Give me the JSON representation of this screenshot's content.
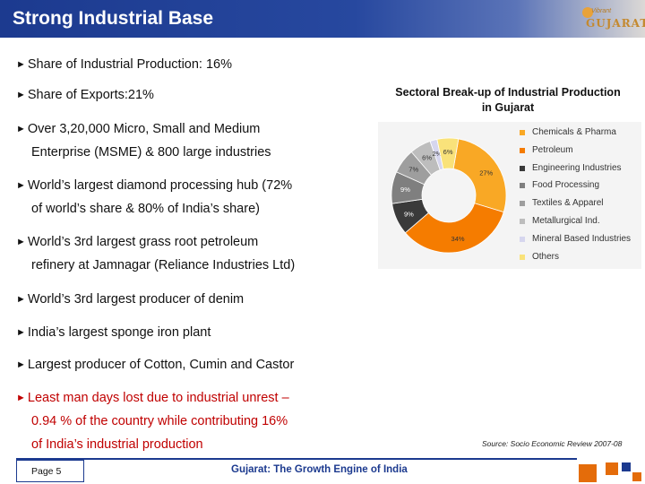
{
  "slide": {
    "title": "Strong Industrial Base",
    "logo_small": "Vibrant",
    "logo_main": "GUJARAT"
  },
  "bullets": [
    {
      "lines": [
        "Share of Industrial Production: 16%"
      ]
    },
    {
      "lines": [
        "Share of Exports:21%"
      ]
    },
    {
      "lines": [
        "Over 3,20,000 Micro, Small and Medium",
        "Enterprise (MSME) & 800 large industries"
      ]
    },
    {
      "lines": [
        "World’s largest diamond processing hub (72%",
        "of world’s share & 80% of India’s share)"
      ]
    },
    {
      "lines": [
        "World’s 3rd largest grass root petroleum",
        "refinery at Jamnagar  (Reliance Industries Ltd)"
      ]
    },
    {
      "lines": [
        "World’s 3rd largest producer of denim"
      ]
    },
    {
      "lines": [
        "India’s largest sponge iron plant"
      ]
    },
    {
      "lines": [
        "Largest producer of Cotton, Cumin and Castor"
      ]
    },
    {
      "lines": [
        "Least man days lost due to industrial unrest –",
        "0.94 % of the country while contributing 16%",
        "of India’s industrial production"
      ],
      "highlight": true
    }
  ],
  "bullet_marker": "►",
  "chart_data": {
    "type": "pie",
    "title": "Sectoral Break-up of Industrial Production in Gujarat",
    "title_lines": [
      "Sectoral Break-up of Industrial Production",
      "in Gujarat"
    ],
    "donut": true,
    "legend_position": "right",
    "categories": [
      "Chemicals & Pharma",
      "Petroleum",
      "Engineering Industries",
      "Food Processing",
      "Textiles & Apparel",
      "Metallurgical Ind.",
      "Mineral Based Industries",
      "Others"
    ],
    "values": [
      27,
      34,
      9,
      9,
      7,
      6,
      2,
      6
    ],
    "data_labels": [
      "27%",
      "34%",
      "9%",
      "9%",
      "7%",
      "6%",
      "2%",
      "6%"
    ],
    "colors": [
      "#f9a825",
      "#f57c00",
      "#3a3a3a",
      "#7f7f7f",
      "#9e9e9e",
      "#bdbdbd",
      "#d6d6ee",
      "#f9e27a"
    ]
  },
  "source": "Source: Socio Economic Review 2007-08",
  "footer": {
    "page": "Page 5",
    "text": "Gujarat: The Growth Engine of India"
  },
  "colors": {
    "title_bar": "#1c3a8f",
    "highlight_text": "#c00000",
    "accent_orange": "#e46c0a"
  }
}
